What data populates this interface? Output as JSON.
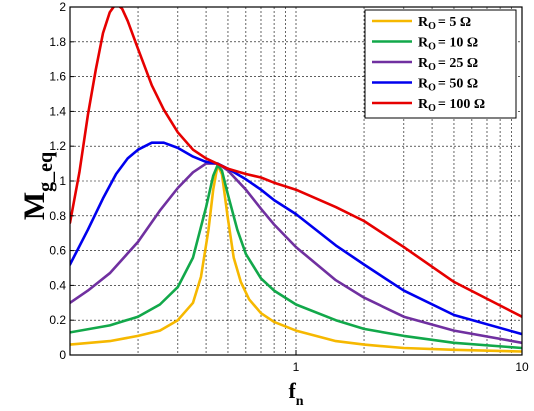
{
  "chart_data": {
    "type": "line",
    "xscale": "log",
    "xlim": [
      0.1,
      10
    ],
    "ylim": [
      0,
      2
    ],
    "grid": true,
    "legend_position": "top-right",
    "xlabel": {
      "main": "f",
      "sub": "n"
    },
    "ylabel": {
      "main": "M",
      "sub": "g_eq"
    },
    "xticks": [
      {
        "value": 1,
        "label": "1"
      },
      {
        "value": 10,
        "label": "10"
      }
    ],
    "yticks": [
      {
        "value": 0,
        "label": "0"
      },
      {
        "value": 0.2,
        "label": "0.2"
      },
      {
        "value": 0.4,
        "label": "0.4"
      },
      {
        "value": 0.6,
        "label": "0.6"
      },
      {
        "value": 0.8,
        "label": "0.8"
      },
      {
        "value": 1,
        "label": "1"
      },
      {
        "value": 1.2,
        "label": "1.2"
      },
      {
        "value": 1.4,
        "label": "1.4"
      },
      {
        "value": 1.6,
        "label": "1.6"
      },
      {
        "value": 1.8,
        "label": "1.8"
      },
      {
        "value": 2,
        "label": "2"
      }
    ],
    "series": [
      {
        "name": "5 Ω",
        "label_prefix": "R",
        "label_sub": "O",
        "label_suffix": "= 5 Ω",
        "color": "#f6b800",
        "points": [
          [
            0.1,
            0.06
          ],
          [
            0.15,
            0.08
          ],
          [
            0.2,
            0.11
          ],
          [
            0.25,
            0.14
          ],
          [
            0.3,
            0.2
          ],
          [
            0.35,
            0.3
          ],
          [
            0.38,
            0.45
          ],
          [
            0.41,
            0.72
          ],
          [
            0.43,
            0.95
          ],
          [
            0.45,
            1.09
          ],
          [
            0.47,
            1.04
          ],
          [
            0.5,
            0.78
          ],
          [
            0.53,
            0.56
          ],
          [
            0.57,
            0.42
          ],
          [
            0.62,
            0.32
          ],
          [
            0.7,
            0.24
          ],
          [
            0.8,
            0.19
          ],
          [
            1.0,
            0.14
          ],
          [
            1.5,
            0.08
          ],
          [
            2,
            0.06
          ],
          [
            3,
            0.04
          ],
          [
            5,
            0.03
          ],
          [
            10,
            0.02
          ]
        ]
      },
      {
        "name": "10 Ω",
        "label_prefix": "R",
        "label_sub": "O",
        "label_suffix": "= 10 Ω",
        "color": "#12a84a",
        "points": [
          [
            0.1,
            0.13
          ],
          [
            0.15,
            0.17
          ],
          [
            0.2,
            0.22
          ],
          [
            0.25,
            0.29
          ],
          [
            0.3,
            0.39
          ],
          [
            0.35,
            0.56
          ],
          [
            0.4,
            0.85
          ],
          [
            0.43,
            1.03
          ],
          [
            0.45,
            1.09
          ],
          [
            0.47,
            1.06
          ],
          [
            0.5,
            0.92
          ],
          [
            0.55,
            0.72
          ],
          [
            0.6,
            0.58
          ],
          [
            0.7,
            0.44
          ],
          [
            0.8,
            0.37
          ],
          [
            1.0,
            0.29
          ],
          [
            1.5,
            0.2
          ],
          [
            2,
            0.15
          ],
          [
            3,
            0.11
          ],
          [
            5,
            0.07
          ],
          [
            10,
            0.04
          ]
        ]
      },
      {
        "name": "25 Ω",
        "label_prefix": "R",
        "label_sub": "O",
        "label_suffix": "= 25 Ω",
        "color": "#7030a0",
        "points": [
          [
            0.1,
            0.3
          ],
          [
            0.12,
            0.37
          ],
          [
            0.15,
            0.47
          ],
          [
            0.2,
            0.65
          ],
          [
            0.25,
            0.83
          ],
          [
            0.3,
            0.96
          ],
          [
            0.35,
            1.05
          ],
          [
            0.4,
            1.1
          ],
          [
            0.45,
            1.1
          ],
          [
            0.5,
            1.06
          ],
          [
            0.6,
            0.95
          ],
          [
            0.7,
            0.84
          ],
          [
            0.8,
            0.75
          ],
          [
            1.0,
            0.62
          ],
          [
            1.5,
            0.43
          ],
          [
            2,
            0.33
          ],
          [
            3,
            0.22
          ],
          [
            5,
            0.14
          ],
          [
            10,
            0.07
          ]
        ]
      },
      {
        "name": "50 Ω",
        "label_prefix": "R",
        "label_sub": "O",
        "label_suffix": "= 50 Ω",
        "color": "#0000ee",
        "points": [
          [
            0.1,
            0.52
          ],
          [
            0.12,
            0.72
          ],
          [
            0.14,
            0.9
          ],
          [
            0.16,
            1.04
          ],
          [
            0.18,
            1.13
          ],
          [
            0.2,
            1.18
          ],
          [
            0.23,
            1.22
          ],
          [
            0.26,
            1.22
          ],
          [
            0.3,
            1.19
          ],
          [
            0.35,
            1.14
          ],
          [
            0.4,
            1.11
          ],
          [
            0.45,
            1.1
          ],
          [
            0.5,
            1.07
          ],
          [
            0.6,
            1.01
          ],
          [
            0.7,
            0.95
          ],
          [
            0.8,
            0.89
          ],
          [
            1.0,
            0.81
          ],
          [
            1.5,
            0.63
          ],
          [
            2,
            0.52
          ],
          [
            3,
            0.37
          ],
          [
            5,
            0.23
          ],
          [
            10,
            0.12
          ]
        ]
      },
      {
        "name": "100 Ω",
        "label_prefix": "R",
        "label_sub": "O",
        "label_suffix": "= 100 Ω",
        "color": "#e60000",
        "points": [
          [
            0.1,
            0.76
          ],
          [
            0.11,
            1.05
          ],
          [
            0.12,
            1.38
          ],
          [
            0.13,
            1.64
          ],
          [
            0.14,
            1.85
          ],
          [
            0.15,
            1.97
          ],
          [
            0.16,
            2.02
          ],
          [
            0.17,
            1.99
          ],
          [
            0.18,
            1.92
          ],
          [
            0.2,
            1.76
          ],
          [
            0.23,
            1.55
          ],
          [
            0.26,
            1.41
          ],
          [
            0.3,
            1.28
          ],
          [
            0.35,
            1.18
          ],
          [
            0.4,
            1.13
          ],
          [
            0.5,
            1.07
          ],
          [
            0.6,
            1.04
          ],
          [
            0.7,
            1.02
          ],
          [
            0.8,
            0.99
          ],
          [
            1.0,
            0.95
          ],
          [
            1.5,
            0.85
          ],
          [
            2,
            0.77
          ],
          [
            3,
            0.62
          ],
          [
            5,
            0.42
          ],
          [
            10,
            0.22
          ]
        ]
      }
    ]
  }
}
